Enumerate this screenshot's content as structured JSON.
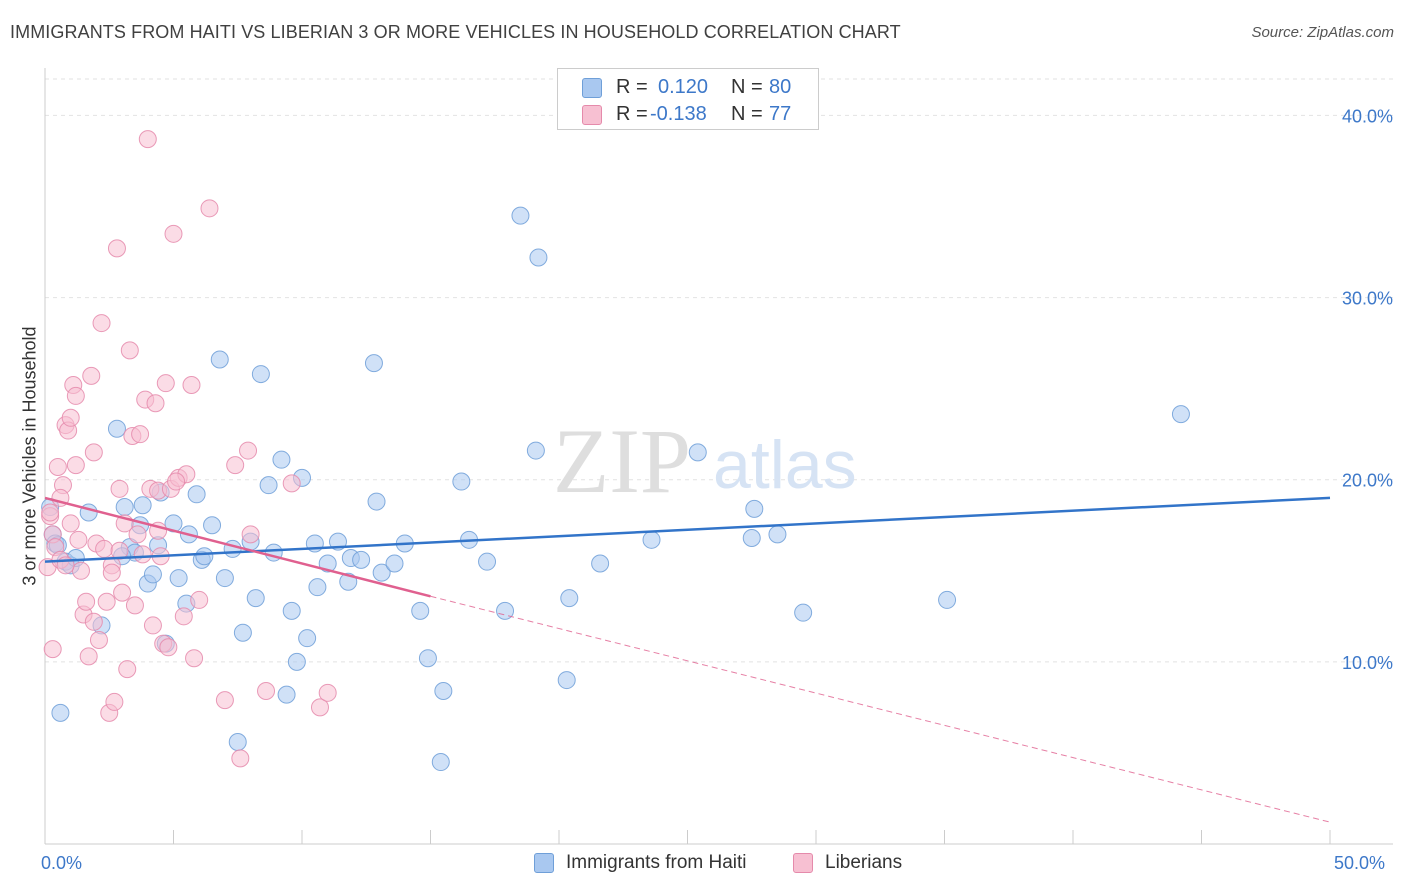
{
  "header": {
    "title": "IMMIGRANTS FROM HAITI VS LIBERIAN 3 OR MORE VEHICLES IN HOUSEHOLD CORRELATION CHART",
    "source": "Source: ZipAtlas.com"
  },
  "watermark": {
    "zip": "ZIP",
    "atlas": "atlas"
  },
  "legend": {
    "rows": [
      {
        "r_label": "R =",
        "r_value": "0.120",
        "n_label": "N =",
        "n_value": "80",
        "color": "#a9c8f0",
        "border": "#6f9fd8"
      },
      {
        "r_label": "R =",
        "r_value": "-0.138",
        "n_label": "N =",
        "n_value": "77",
        "color": "#f7c0d2",
        "border": "#e58aab"
      }
    ]
  },
  "bottom_legend": {
    "haiti": "Immigrants from Haiti",
    "liberians": "Liberians"
  },
  "colors": {
    "haiti_fill": "#a9c8f0",
    "haiti_stroke": "#6f9fd8",
    "haiti_line": "#3274c9",
    "liberian_fill": "#f7c0d2",
    "liberian_stroke": "#e58aab",
    "liberian_line": "#e0608f",
    "axis_text": "#3d78c9"
  },
  "chart_data": {
    "type": "scatter",
    "title": "IMMIGRANTS FROM HAITI VS LIBERIAN 3 OR MORE VEHICLES IN HOUSEHOLD CORRELATION CHART",
    "xlabel": "",
    "ylabel": "3 or more Vehicles in Household",
    "xlim": [
      0,
      50
    ],
    "ylim": [
      0,
      42
    ],
    "x_tick_labels": [
      "0.0%",
      "50.0%"
    ],
    "y_ticks": [
      10,
      20,
      30,
      40
    ],
    "y_tick_labels": [
      "10.0%",
      "20.0%",
      "30.0%",
      "40.0%"
    ],
    "grid": true,
    "legend_position": "top-center",
    "series": [
      {
        "name": "Immigrants from Haiti",
        "r": 0.12,
        "n": 80,
        "trend": {
          "x": [
            0,
            50
          ],
          "y": [
            15.5,
            19.0
          ]
        },
        "points": [
          [
            0.2,
            18.5
          ],
          [
            0.3,
            17.0
          ],
          [
            0.4,
            16.5
          ],
          [
            0.6,
            7.2
          ],
          [
            0.8,
            15.5
          ],
          [
            1.0,
            15.3
          ],
          [
            1.2,
            15.7
          ],
          [
            1.7,
            18.2
          ],
          [
            2.2,
            12.0
          ],
          [
            2.8,
            22.8
          ],
          [
            3.1,
            18.5
          ],
          [
            3.3,
            16.3
          ],
          [
            3.5,
            16.0
          ],
          [
            3.7,
            17.5
          ],
          [
            3.8,
            18.6
          ],
          [
            4.0,
            14.3
          ],
          [
            4.2,
            14.8
          ],
          [
            4.4,
            16.4
          ],
          [
            4.5,
            19.3
          ],
          [
            4.7,
            11.0
          ],
          [
            5.0,
            17.6
          ],
          [
            5.2,
            14.6
          ],
          [
            5.5,
            13.2
          ],
          [
            5.6,
            17.0
          ],
          [
            5.9,
            19.2
          ],
          [
            6.1,
            15.6
          ],
          [
            6.2,
            15.8
          ],
          [
            6.5,
            17.5
          ],
          [
            6.8,
            26.6
          ],
          [
            7.0,
            14.6
          ],
          [
            7.3,
            16.2
          ],
          [
            7.5,
            5.6
          ],
          [
            7.7,
            11.6
          ],
          [
            8.0,
            16.6
          ],
          [
            8.2,
            13.5
          ],
          [
            8.4,
            25.8
          ],
          [
            8.7,
            19.7
          ],
          [
            8.9,
            16.0
          ],
          [
            9.2,
            21.1
          ],
          [
            9.4,
            8.2
          ],
          [
            9.6,
            12.8
          ],
          [
            9.8,
            10.0
          ],
          [
            10.0,
            20.1
          ],
          [
            10.2,
            11.3
          ],
          [
            10.5,
            16.5
          ],
          [
            10.6,
            14.1
          ],
          [
            11.0,
            15.4
          ],
          [
            11.4,
            16.6
          ],
          [
            11.8,
            14.4
          ],
          [
            11.9,
            15.7
          ],
          [
            12.3,
            15.6
          ],
          [
            12.8,
            26.4
          ],
          [
            12.9,
            18.8
          ],
          [
            13.1,
            14.9
          ],
          [
            13.6,
            15.4
          ],
          [
            14.0,
            16.5
          ],
          [
            14.6,
            12.8
          ],
          [
            14.9,
            10.2
          ],
          [
            15.5,
            8.4
          ],
          [
            15.4,
            4.5
          ],
          [
            16.2,
            19.9
          ],
          [
            16.5,
            16.7
          ],
          [
            17.2,
            15.5
          ],
          [
            17.9,
            12.8
          ],
          [
            18.5,
            34.5
          ],
          [
            19.2,
            32.2
          ],
          [
            19.1,
            21.6
          ],
          [
            20.3,
            9.0
          ],
          [
            20.4,
            13.5
          ],
          [
            21.6,
            15.4
          ],
          [
            23.6,
            16.7
          ],
          [
            25.4,
            21.5
          ],
          [
            27.5,
            16.8
          ],
          [
            27.6,
            18.4
          ],
          [
            28.5,
            17.0
          ],
          [
            29.5,
            12.7
          ],
          [
            35.1,
            13.4
          ],
          [
            44.2,
            23.6
          ],
          [
            0.5,
            16.4
          ],
          [
            3.0,
            15.8
          ]
        ]
      },
      {
        "name": "Liberians",
        "r": -0.138,
        "n": 77,
        "trend": {
          "x": [
            0,
            15
          ],
          "y": [
            19.0,
            13.6
          ]
        },
        "trend_dashed": {
          "x": [
            15,
            50
          ],
          "y": [
            13.6,
            1.2
          ]
        },
        "points": [
          [
            0.1,
            15.2
          ],
          [
            0.2,
            18.0
          ],
          [
            0.3,
            17.0
          ],
          [
            0.4,
            16.3
          ],
          [
            0.5,
            20.7
          ],
          [
            0.6,
            15.6
          ],
          [
            0.7,
            19.7
          ],
          [
            0.8,
            23.0
          ],
          [
            0.9,
            22.7
          ],
          [
            1.0,
            23.4
          ],
          [
            1.0,
            17.6
          ],
          [
            1.1,
            25.2
          ],
          [
            1.2,
            24.6
          ],
          [
            1.3,
            16.7
          ],
          [
            1.4,
            15.0
          ],
          [
            1.5,
            12.6
          ],
          [
            1.6,
            13.3
          ],
          [
            1.7,
            10.3
          ],
          [
            1.8,
            25.7
          ],
          [
            1.9,
            21.5
          ],
          [
            2.0,
            16.5
          ],
          [
            2.1,
            11.2
          ],
          [
            2.2,
            28.6
          ],
          [
            2.3,
            16.2
          ],
          [
            2.4,
            13.3
          ],
          [
            2.5,
            7.2
          ],
          [
            2.6,
            15.3
          ],
          [
            2.7,
            7.8
          ],
          [
            2.8,
            32.7
          ],
          [
            2.9,
            19.5
          ],
          [
            3.0,
            13.8
          ],
          [
            3.1,
            17.6
          ],
          [
            3.2,
            9.6
          ],
          [
            3.3,
            27.1
          ],
          [
            3.4,
            22.4
          ],
          [
            3.5,
            13.1
          ],
          [
            3.6,
            17.0
          ],
          [
            3.7,
            22.5
          ],
          [
            3.9,
            24.4
          ],
          [
            4.0,
            38.7
          ],
          [
            4.1,
            19.5
          ],
          [
            4.2,
            12.0
          ],
          [
            4.3,
            24.2
          ],
          [
            4.4,
            19.4
          ],
          [
            4.5,
            15.8
          ],
          [
            4.6,
            11.0
          ],
          [
            4.7,
            25.3
          ],
          [
            4.8,
            10.8
          ],
          [
            4.9,
            19.5
          ],
          [
            5.0,
            33.5
          ],
          [
            5.2,
            20.1
          ],
          [
            5.4,
            12.5
          ],
          [
            5.5,
            20.3
          ],
          [
            5.7,
            25.2
          ],
          [
            5.8,
            10.2
          ],
          [
            6.0,
            13.4
          ],
          [
            6.4,
            34.9
          ],
          [
            7.0,
            7.9
          ],
          [
            7.4,
            20.8
          ],
          [
            7.6,
            4.7
          ],
          [
            7.9,
            21.6
          ],
          [
            8.0,
            17.0
          ],
          [
            8.6,
            8.4
          ],
          [
            9.6,
            19.8
          ],
          [
            10.7,
            7.5
          ],
          [
            11.0,
            8.3
          ],
          [
            0.3,
            10.7
          ],
          [
            0.6,
            19.0
          ],
          [
            1.9,
            12.2
          ],
          [
            2.9,
            16.1
          ],
          [
            3.8,
            15.9
          ],
          [
            4.4,
            17.2
          ],
          [
            5.1,
            19.9
          ],
          [
            0.2,
            18.2
          ],
          [
            1.2,
            20.8
          ],
          [
            2.6,
            14.9
          ],
          [
            0.8,
            15.3
          ]
        ]
      }
    ]
  }
}
